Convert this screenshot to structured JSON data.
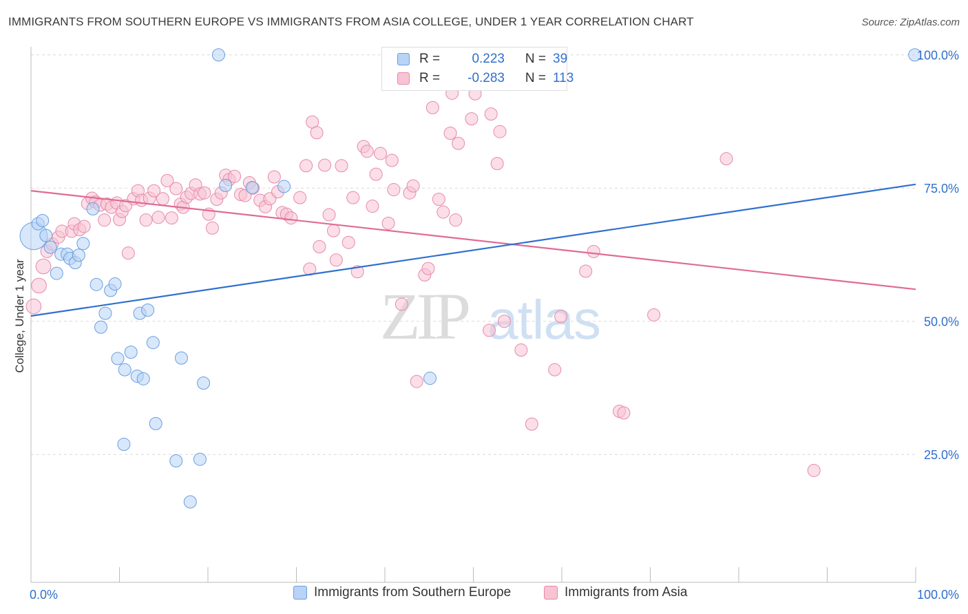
{
  "header": {
    "title": "IMMIGRANTS FROM SOUTHERN EUROPE VS IMMIGRANTS FROM ASIA COLLEGE, UNDER 1 YEAR CORRELATION CHART",
    "source": "Source: ZipAtlas.com"
  },
  "watermark": {
    "zip": "ZIP",
    "atlas": "atlas"
  },
  "colors": {
    "blue_fill": "#b8d3f5",
    "blue_stroke": "#6a9ee0",
    "blue_line": "#2f6fd0",
    "pink_fill": "#f8c3d3",
    "pink_stroke": "#e58aa8",
    "pink_line": "#e06a96",
    "value_text": "#2f6fcc"
  },
  "legend": {
    "rows": [
      {
        "r_label": "R =",
        "r_value": "0.223",
        "n_label": "N =",
        "n_value": "39"
      },
      {
        "r_label": "R =",
        "r_value": "-0.283",
        "n_label": "N =",
        "n_value": "113"
      }
    ]
  },
  "chart_data": {
    "type": "scatter",
    "title": "IMMIGRANTS FROM SOUTHERN EUROPE VS IMMIGRANTS FROM ASIA COLLEGE, UNDER 1 YEAR CORRELATION CHART",
    "xlabel": "",
    "ylabel": "College, Under 1 year",
    "xlim": [
      0,
      100
    ],
    "ylim": [
      1,
      101
    ],
    "x_tick_labels": [
      "0.0%",
      "100.0%"
    ],
    "y_ticks": [
      25,
      50,
      75,
      100
    ],
    "y_tick_labels": [
      "25.0%",
      "50.0%",
      "75.0%",
      "100.0%"
    ],
    "grid": true,
    "legend_position": "bottom",
    "series": [
      {
        "name": "Immigrants from Southern Europe",
        "color": "blue",
        "trend": [
          [
            0,
            51.0
          ],
          [
            100,
            75.7
          ]
        ],
        "points": [
          [
            0.3,
            66,
            2.2
          ],
          [
            0.8,
            68.3,
            1
          ],
          [
            1.3,
            68.9,
            1
          ],
          [
            1.7,
            66.1,
            1
          ],
          [
            2.2,
            63.9,
            1
          ],
          [
            3.4,
            62.6,
            1
          ],
          [
            2.9,
            59.0,
            1
          ],
          [
            4.1,
            62.6,
            1
          ],
          [
            4.4,
            61.8,
            1
          ],
          [
            5.0,
            61.0,
            1
          ],
          [
            5.4,
            62.4,
            1
          ],
          [
            5.9,
            64.6,
            1
          ],
          [
            7.0,
            71.1,
            1
          ],
          [
            7.4,
            56.9,
            1
          ],
          [
            7.9,
            48.9,
            1
          ],
          [
            8.4,
            51.5,
            1
          ],
          [
            9.0,
            55.8,
            1
          ],
          [
            9.5,
            57.0,
            1
          ],
          [
            9.8,
            43.0,
            1
          ],
          [
            10.6,
            40.9,
            1
          ],
          [
            10.5,
            26.9,
            1
          ],
          [
            11.3,
            44.2,
            1
          ],
          [
            12.0,
            39.7,
            1
          ],
          [
            12.3,
            51.5,
            1
          ],
          [
            12.7,
            39.2,
            1
          ],
          [
            13.2,
            52.1,
            1
          ],
          [
            13.8,
            46.0,
            1
          ],
          [
            14.1,
            30.8,
            1
          ],
          [
            16.4,
            23.8,
            1
          ],
          [
            17.0,
            43.1,
            1
          ],
          [
            18.0,
            16.1,
            1
          ],
          [
            19.1,
            24.1,
            1
          ],
          [
            19.5,
            38.4,
            1
          ],
          [
            21.2,
            100.0,
            1
          ],
          [
            22.0,
            75.5,
            1
          ],
          [
            25.0,
            75.1,
            1
          ],
          [
            28.6,
            75.3,
            1
          ],
          [
            45.1,
            39.3,
            1
          ],
          [
            99.9,
            100.0,
            1
          ]
        ]
      },
      {
        "name": "Immigrants from Asia",
        "color": "pink",
        "trend": [
          [
            0,
            74.5
          ],
          [
            100,
            56.0
          ]
        ],
        "points": [
          [
            0.3,
            52.8,
            1.2
          ],
          [
            0.9,
            56.7,
            1.2
          ],
          [
            1.4,
            60.3,
            1.2
          ],
          [
            1.8,
            63.1,
            1
          ],
          [
            2.4,
            64.5,
            1
          ],
          [
            3.1,
            65.8,
            1
          ],
          [
            3.5,
            66.9,
            1
          ],
          [
            4.6,
            66.9,
            1
          ],
          [
            4.9,
            68.3,
            1
          ],
          [
            5.5,
            67.2,
            1
          ],
          [
            6.0,
            67.8,
            1
          ],
          [
            6.4,
            72.1,
            1
          ],
          [
            6.9,
            73.1,
            1
          ],
          [
            7.3,
            72.4,
            1
          ],
          [
            7.8,
            71.8,
            1
          ],
          [
            8.3,
            69.0,
            1
          ],
          [
            8.6,
            72.0,
            1
          ],
          [
            9.1,
            71.4,
            1
          ],
          [
            9.7,
            72.2,
            1
          ],
          [
            10.0,
            69.1,
            1
          ],
          [
            10.3,
            70.6,
            1
          ],
          [
            10.7,
            71.7,
            1
          ],
          [
            11.0,
            62.8,
            1
          ],
          [
            11.6,
            73.0,
            1
          ],
          [
            12.1,
            74.5,
            1
          ],
          [
            12.5,
            72.7,
            1
          ],
          [
            13.0,
            69.0,
            1
          ],
          [
            13.4,
            73.1,
            1
          ],
          [
            13.9,
            74.5,
            1
          ],
          [
            14.4,
            69.5,
            1
          ],
          [
            14.9,
            73.0,
            1
          ],
          [
            15.4,
            76.4,
            1
          ],
          [
            15.9,
            69.4,
            1
          ],
          [
            16.4,
            74.9,
            1
          ],
          [
            16.9,
            72.0,
            1
          ],
          [
            17.2,
            71.4,
            1
          ],
          [
            17.6,
            73.3,
            1
          ],
          [
            18.1,
            74.0,
            1
          ],
          [
            18.6,
            75.6,
            1
          ],
          [
            19.1,
            73.9,
            1
          ],
          [
            19.6,
            74.1,
            1
          ],
          [
            20.1,
            70.1,
            1
          ],
          [
            20.5,
            67.5,
            1
          ],
          [
            21.0,
            72.9,
            1
          ],
          [
            21.5,
            74.1,
            1
          ],
          [
            22.0,
            77.4,
            1
          ],
          [
            22.4,
            76.6,
            1
          ],
          [
            23.0,
            77.2,
            1
          ],
          [
            23.7,
            73.8,
            1
          ],
          [
            24.2,
            73.6,
            1
          ],
          [
            24.7,
            76.0,
            1
          ],
          [
            25.1,
            75.0,
            1
          ],
          [
            25.9,
            72.7,
            1
          ],
          [
            26.5,
            71.5,
            1
          ],
          [
            27.0,
            73.0,
            1
          ],
          [
            27.5,
            77.1,
            1
          ],
          [
            27.9,
            74.3,
            1
          ],
          [
            28.4,
            70.4,
            1
          ],
          [
            28.9,
            70.1,
            1
          ],
          [
            29.4,
            69.4,
            1
          ],
          [
            30.4,
            73.2,
            1
          ],
          [
            31.1,
            79.2,
            1
          ],
          [
            31.5,
            59.8,
            1
          ],
          [
            31.8,
            87.4,
            1
          ],
          [
            32.3,
            85.4,
            1
          ],
          [
            32.6,
            64.0,
            1
          ],
          [
            33.2,
            79.3,
            1
          ],
          [
            33.7,
            70.0,
            1
          ],
          [
            34.2,
            67.0,
            1
          ],
          [
            34.5,
            61.5,
            1
          ],
          [
            35.1,
            79.2,
            1
          ],
          [
            35.9,
            64.8,
            1
          ],
          [
            36.4,
            73.2,
            1
          ],
          [
            36.9,
            59.3,
            1
          ],
          [
            37.6,
            82.8,
            1
          ],
          [
            38.0,
            81.9,
            1
          ],
          [
            38.6,
            71.6,
            1
          ],
          [
            39.0,
            77.6,
            1
          ],
          [
            39.5,
            81.5,
            1
          ],
          [
            40.4,
            68.4,
            1
          ],
          [
            40.8,
            80.2,
            1
          ],
          [
            41.0,
            74.7,
            1
          ],
          [
            41.9,
            53.2,
            1
          ],
          [
            42.8,
            74.1,
            1
          ],
          [
            43.2,
            75.4,
            1
          ],
          [
            43.6,
            38.7,
            1
          ],
          [
            44.5,
            58.7,
            1
          ],
          [
            44.9,
            59.9,
            1
          ],
          [
            45.4,
            90.1,
            1
          ],
          [
            46.1,
            72.9,
            1
          ],
          [
            46.6,
            70.5,
            1
          ],
          [
            47.4,
            85.3,
            1
          ],
          [
            47.6,
            92.8,
            1
          ],
          [
            48.0,
            69.0,
            1
          ],
          [
            48.3,
            83.4,
            1
          ],
          [
            49.8,
            88.0,
            1
          ],
          [
            50.2,
            92.7,
            1
          ],
          [
            51.8,
            48.3,
            1
          ],
          [
            52.0,
            88.9,
            1
          ],
          [
            52.7,
            79.6,
            1
          ],
          [
            53.0,
            85.6,
            1
          ],
          [
            53.5,
            50.0,
            1
          ],
          [
            55.4,
            44.6,
            1
          ],
          [
            56.6,
            30.7,
            1
          ],
          [
            59.2,
            40.9,
            1
          ],
          [
            59.9,
            50.9,
            1
          ],
          [
            62.7,
            59.4,
            1
          ],
          [
            63.6,
            63.1,
            1
          ],
          [
            66.5,
            33.1,
            1
          ],
          [
            67.0,
            32.8,
            1
          ],
          [
            70.4,
            51.2,
            1
          ],
          [
            78.6,
            80.5,
            1
          ],
          [
            88.5,
            22.0,
            1
          ]
        ]
      }
    ]
  },
  "bottom_legend": {
    "items": [
      {
        "label": "Immigrants from Southern Europe"
      },
      {
        "label": "Immigrants from Asia"
      }
    ]
  }
}
